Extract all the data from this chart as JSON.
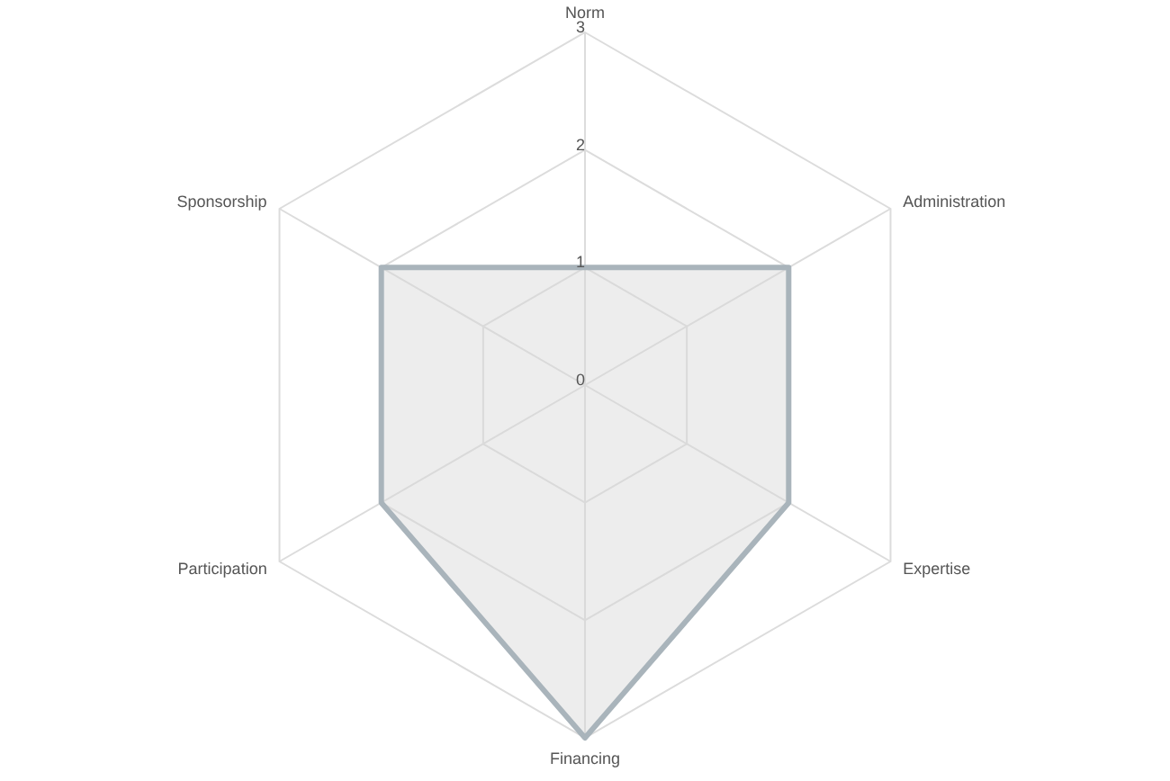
{
  "chart_data": {
    "type": "radar",
    "categories": [
      "Norm",
      "Administration",
      "Expertise",
      "Financing",
      "Participation",
      "Sponsorship"
    ],
    "series": [
      {
        "color": "#a9b4bb",
        "values": [
          1,
          2,
          2,
          3,
          2,
          2
        ]
      }
    ],
    "ylim": [
      0,
      3
    ],
    "yticks": [
      0,
      1,
      2,
      3
    ],
    "grid": true,
    "marker": "none"
  }
}
